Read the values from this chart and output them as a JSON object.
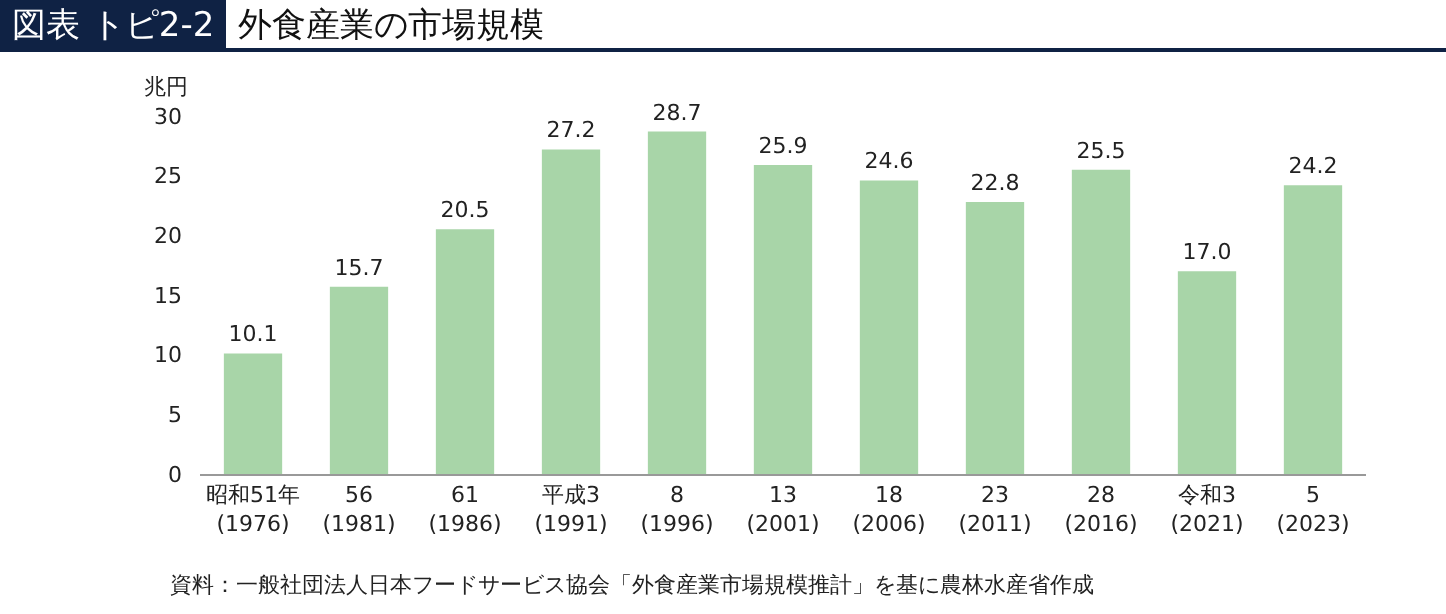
{
  "chart_data": {
    "type": "bar",
    "title": "図表 トピ2-2",
    "subtitle": "外食産業の市場規模",
    "ylabel": "兆円",
    "categories": [
      "昭和51年\n(1976)",
      "56\n(1981)",
      "61\n(1986)",
      "平成3\n(1991)",
      "8\n(1996)",
      "13\n(2001)",
      "18\n(2006)",
      "23\n(2011)",
      "28\n(2016)",
      "令和3\n(2021)",
      "5\n(2023)"
    ],
    "values": [
      10.1,
      15.7,
      20.5,
      27.2,
      28.7,
      25.9,
      24.6,
      22.8,
      25.5,
      17.0,
      24.2
    ],
    "value_labels": [
      "10.1",
      "15.7",
      "20.5",
      "27.2",
      "28.7",
      "25.9",
      "24.6",
      "22.8",
      "25.5",
      "17.0",
      "24.2"
    ],
    "color": "#a8d5a8",
    "ylim": [
      0,
      30
    ],
    "yticks": [
      0,
      5,
      10,
      15,
      20,
      25,
      30
    ],
    "grid": false,
    "legend": false,
    "annotations": [
      "資料：一般社団法人日本フードサービス協会「外食産業市場規模推計」を基に農林水産省作成"
    ]
  }
}
